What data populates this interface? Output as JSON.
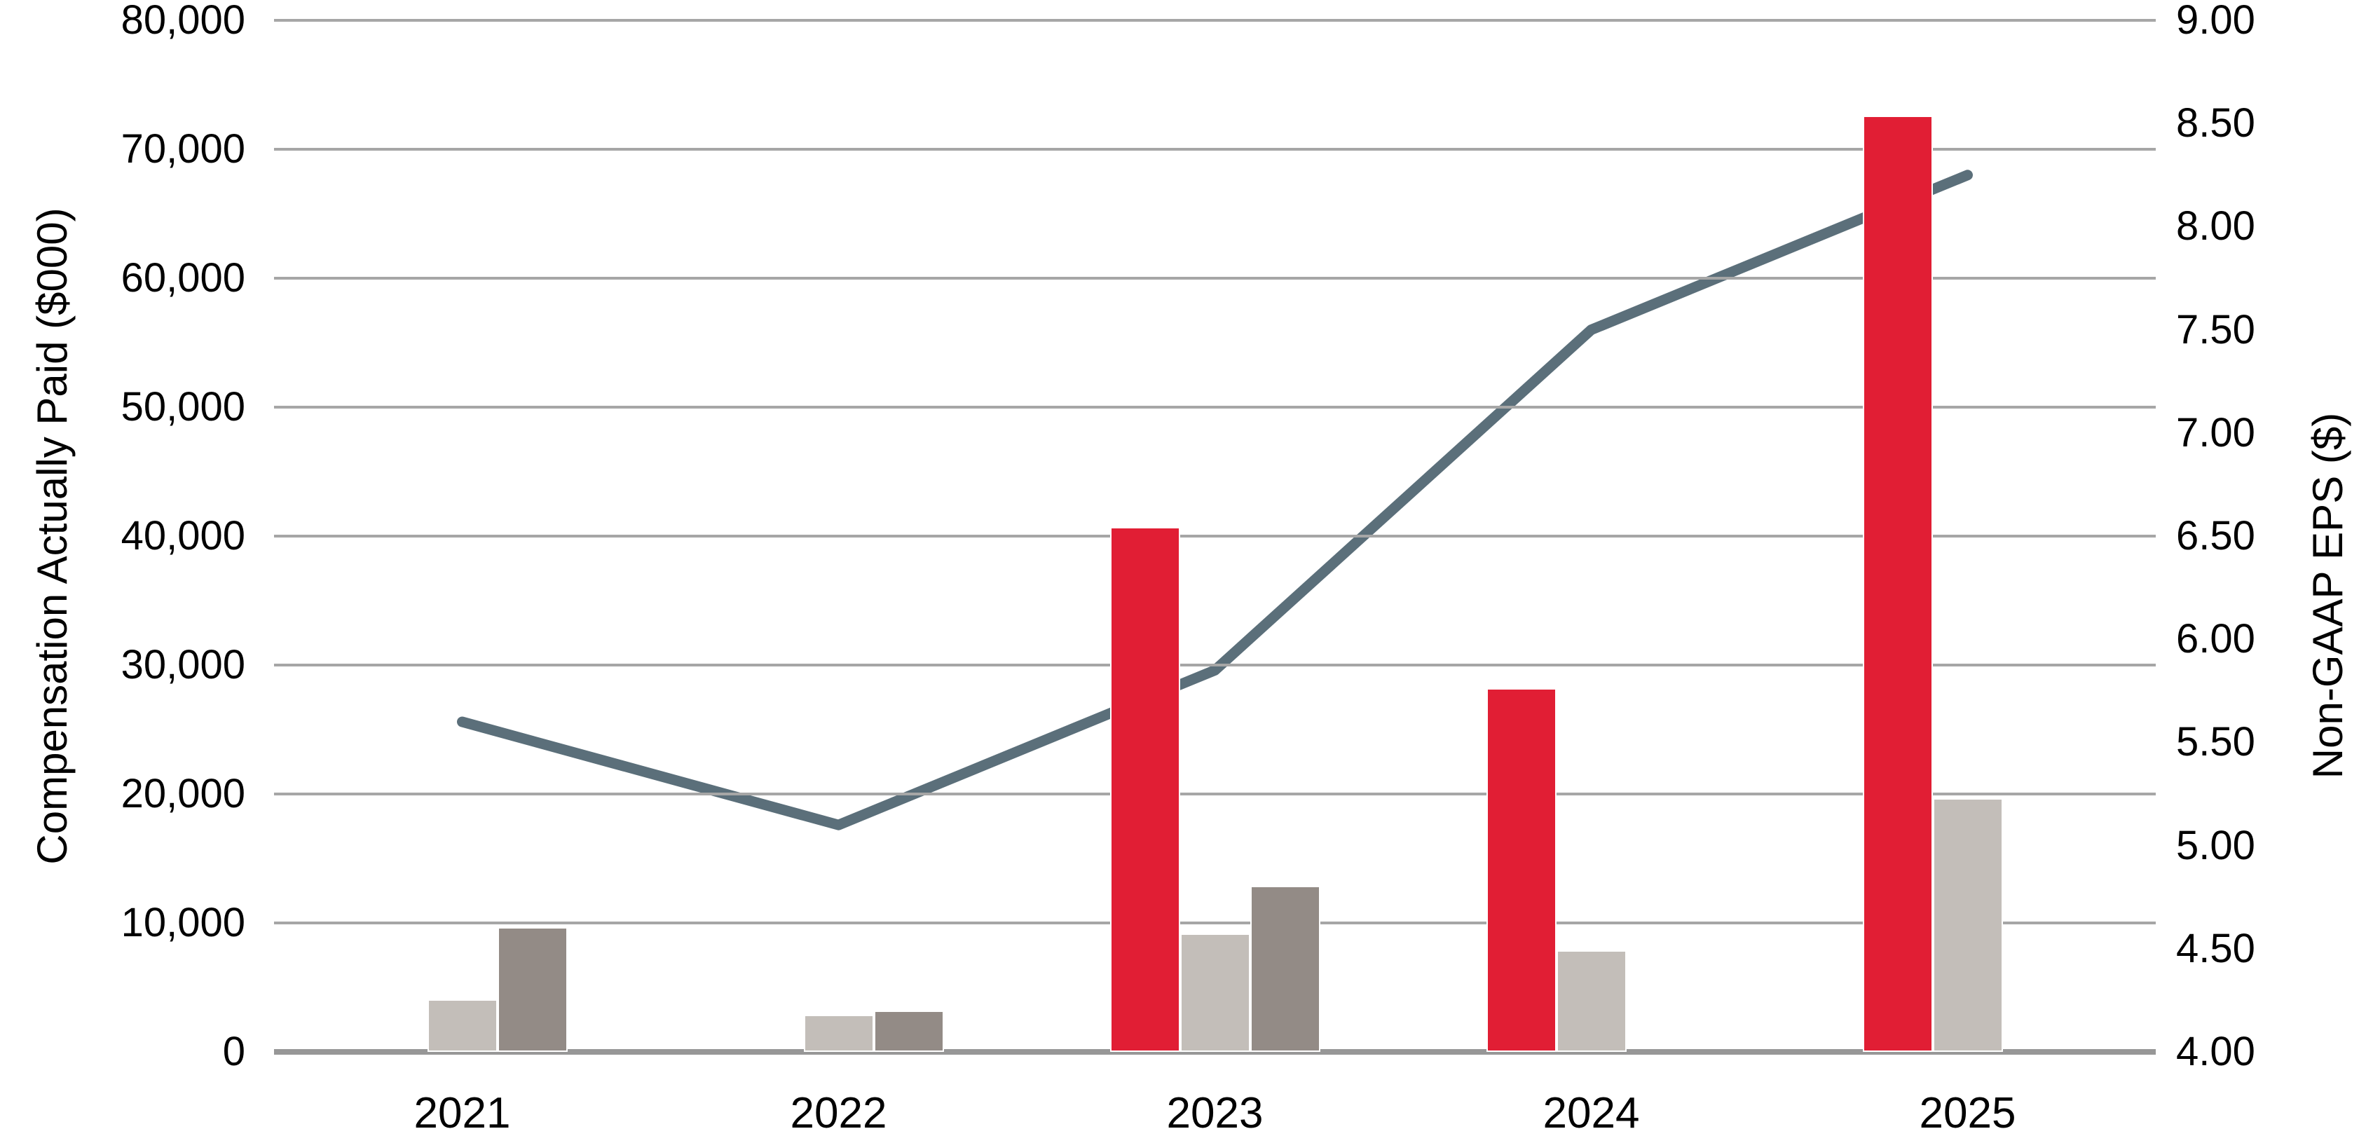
{
  "chart_data": {
    "type": "bar+line",
    "title": "",
    "categories": [
      "2021",
      "2022",
      "2023",
      "2024",
      "2025"
    ],
    "series": [
      {
        "name": "red-bars",
        "type": "bar",
        "axis": "left",
        "color": "#E11E34",
        "values": [
          0,
          0,
          40700,
          28200,
          72600
        ]
      },
      {
        "name": "light-gray-bars",
        "type": "bar",
        "axis": "left",
        "color": "#C3BEB9",
        "values": [
          4100,
          2900,
          9200,
          7900,
          19700
        ]
      },
      {
        "name": "dark-gray-bars",
        "type": "bar",
        "axis": "left",
        "color": "#938B86",
        "values": [
          9700,
          3200,
          12900,
          0,
          0
        ]
      },
      {
        "name": "eps-line",
        "type": "line",
        "axis": "right",
        "color": "#5B6F7A",
        "values": [
          5.6,
          5.1,
          5.85,
          7.5,
          8.25
        ]
      }
    ],
    "left_axis": {
      "label": "Compensation Actually Paid ($000)",
      "min": 0,
      "max": 80000,
      "step": 10000,
      "tick_labels": [
        "0",
        "10,000",
        "20,000",
        "30,000",
        "40,000",
        "50,000",
        "60,000",
        "70,000",
        "80,000"
      ]
    },
    "right_axis": {
      "label": "Non-GAAP EPS ($)",
      "min": 4.0,
      "max": 9.0,
      "step": 0.5,
      "tick_labels": [
        "4.00",
        "4.50",
        "5.00",
        "5.50",
        "6.00",
        "6.50",
        "7.00",
        "7.50",
        "8.00",
        "8.50",
        "9.00"
      ]
    },
    "grid": "horizontal",
    "legend": "none",
    "colors": {
      "gridline": "#A6A6A6",
      "baseline": "#979797",
      "text": "#000000",
      "background": "#FFFFFF"
    }
  }
}
